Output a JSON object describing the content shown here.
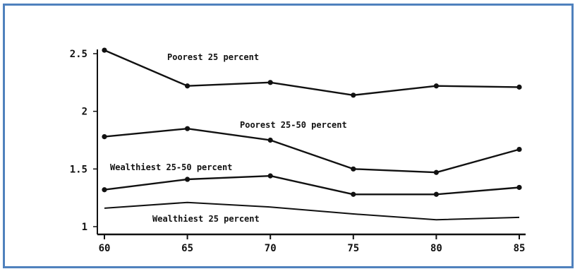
{
  "frame": {
    "border_color": "#4f81bd"
  },
  "chart_data": {
    "type": "line",
    "title": "",
    "xlabel": "",
    "ylabel": "",
    "x": [
      60,
      65,
      70,
      75,
      80,
      85
    ],
    "xlim": [
      60,
      85
    ],
    "ylim": [
      1,
      2.5
    ],
    "x_ticks": [
      "60",
      "65",
      "70",
      "75",
      "80",
      "85"
    ],
    "y_ticks": [
      "1",
      "1.5",
      "2",
      "2.5"
    ],
    "grid": false,
    "legend": "none",
    "line_color": "#111111",
    "series": [
      {
        "name": "Poorest 25 percent",
        "values": [
          2.53,
          2.22,
          2.25,
          2.14,
          2.22,
          2.21
        ],
        "markers": true
      },
      {
        "name": "Poorest 25-50 percent",
        "values": [
          1.78,
          1.85,
          1.75,
          1.5,
          1.47,
          1.67
        ],
        "markers": true
      },
      {
        "name": "Wealthiest 25-50 percent",
        "values": [
          1.32,
          1.41,
          1.44,
          1.28,
          1.28,
          1.34
        ],
        "markers": true
      },
      {
        "name": "Wealthiest 25 percent",
        "values": [
          1.16,
          1.21,
          1.17,
          1.11,
          1.06,
          1.08
        ],
        "markers": false
      }
    ]
  }
}
